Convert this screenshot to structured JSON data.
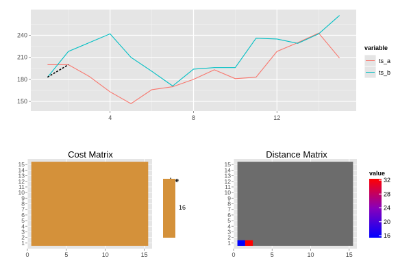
{
  "chart_data": [
    {
      "type": "line",
      "x": [
        1,
        2,
        3,
        4,
        5,
        6,
        7,
        8,
        9,
        10,
        11,
        12,
        13,
        14,
        15
      ],
      "series": [
        {
          "name": "ts_a",
          "color": "#f8766d",
          "values": [
            200,
            200,
            184,
            163,
            147,
            166,
            170,
            180,
            193,
            181,
            183,
            218,
            230,
            243,
            209
          ]
        },
        {
          "name": "ts_b",
          "color": "#00bfc4",
          "values": [
            183,
            218,
            230,
            242,
            210,
            191,
            171,
            194,
            196,
            196,
            236,
            235,
            229,
            242,
            267
          ]
        }
      ],
      "annotation": {
        "style": "dashed",
        "color": "#000000",
        "from": {
          "x": 1,
          "y": 183
        },
        "to": {
          "x": 2,
          "y": 200
        }
      },
      "xticks": [
        "4",
        "8",
        "12"
      ],
      "yticks": [
        "150",
        "180",
        "210",
        "240"
      ],
      "xlim": [
        0.2,
        15.8
      ],
      "ylim": [
        137,
        275
      ],
      "legend": {
        "title": "variable",
        "position": "right",
        "entries": [
          "ts_a",
          "ts_b"
        ]
      },
      "grid": true
    },
    {
      "type": "heatmap",
      "title": "Cost Matrix",
      "fill_color": "#d4913a",
      "cells": {
        "x": [
          1,
          15
        ],
        "y": [
          1,
          15
        ],
        "value": 16
      },
      "xticks": [
        "0",
        "5",
        "10",
        "15"
      ],
      "yticks": [
        "1",
        "2",
        "3",
        "4",
        "5",
        "6",
        "7",
        "8",
        "9",
        "10",
        "11",
        "12",
        "13",
        "14",
        "15"
      ],
      "xlim": [
        0,
        16
      ],
      "ylim": [
        0,
        16
      ],
      "legend": {
        "title": "value",
        "position": "right",
        "labels": [
          "16"
        ]
      }
    },
    {
      "type": "heatmap",
      "title": "Distance Matrix",
      "background_color": "#6c6c6c",
      "cells": [
        {
          "x": 1,
          "y": 1,
          "value": 16,
          "color": "#0000ff"
        },
        {
          "x": 2,
          "y": 1,
          "value": 32,
          "color": "#ff0000"
        }
      ],
      "xticks": [
        "0",
        "5",
        "10",
        "15"
      ],
      "yticks": [
        "1",
        "2",
        "3",
        "4",
        "5",
        "6",
        "7",
        "8",
        "9",
        "10",
        "11",
        "12",
        "13",
        "14",
        "15"
      ],
      "xlim": [
        0,
        16
      ],
      "ylim": [
        0,
        16
      ],
      "legend": {
        "title": "value",
        "position": "right",
        "labels": [
          "32",
          "28",
          "24",
          "20",
          "16"
        ],
        "low_color": "#0000ff",
        "high_color": "#ff0000"
      }
    }
  ]
}
